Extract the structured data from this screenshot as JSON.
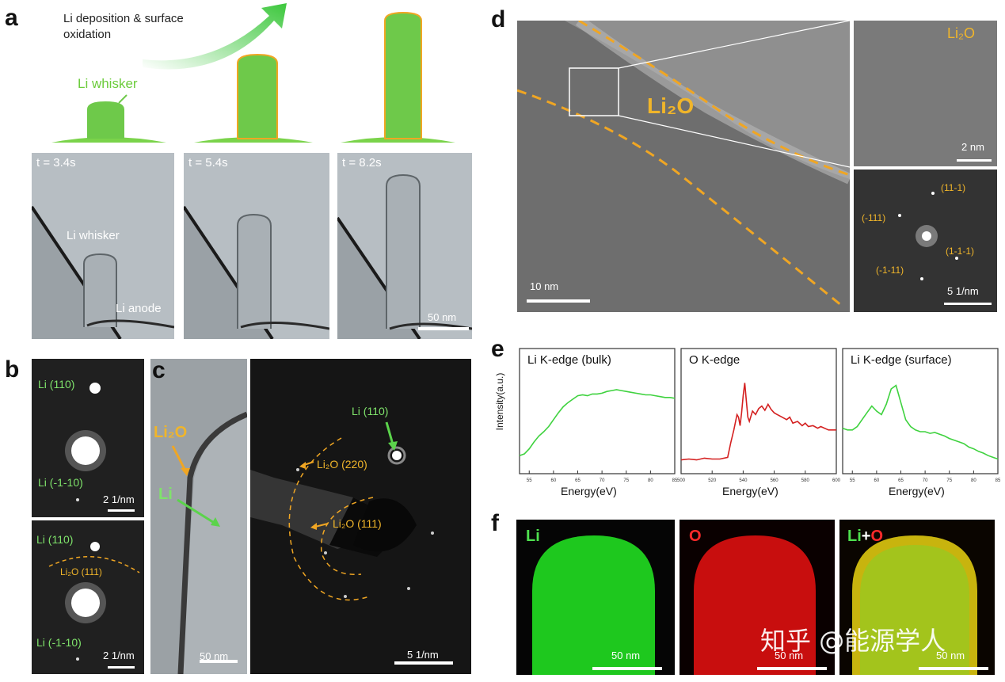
{
  "panels": {
    "a": {
      "label": "a",
      "arrow_caption_line1": "Li deposition & surface",
      "arrow_caption_line2": "oxidation",
      "whisker_label": "Li whisker",
      "frames": [
        {
          "time": "t = 3.4s"
        },
        {
          "time": "t = 5.4s"
        },
        {
          "time": "t = 8.2s"
        }
      ],
      "whisker_text": "Li whisker",
      "anode_text": "Li anode",
      "scalebar": "50 nm"
    },
    "b": {
      "label": "b",
      "top": {
        "spot1": "Li (110)",
        "spot2": "Li (-1-10)",
        "scalebar": "2 1/nm"
      },
      "bottom": {
        "spot1": "Li (110)",
        "ring": "Li₂O (111)",
        "spot2": "Li (-1-10)",
        "scalebar": "2 1/nm"
      }
    },
    "c": {
      "label": "c",
      "li2o": "Li₂O",
      "li": "Li",
      "scalebar_left": "50 nm",
      "li110": "Li (110)",
      "li2o220": "Li₂O (220)",
      "li2o111": "Li₂O (111)",
      "scalebar_right": "5 1/nm"
    },
    "d": {
      "label": "d",
      "main_label": "Li₂O",
      "scalebar_main": "10 nm",
      "inset_label": "Li₂O",
      "scalebar_inset": "2 nm",
      "fft_spots": [
        "(11-1)",
        "(-111)",
        "(1-1-1)",
        "(-1-11)"
      ],
      "scalebar_fft": "5 1/nm"
    },
    "e": {
      "label": "e",
      "ylabel": "Intensity(a.u.)",
      "charts": [
        {
          "title": "Li K-edge (bulk)",
          "xlabel": "Energy(eV)"
        },
        {
          "title": "O K-edge",
          "xlabel": "Energy(eV)"
        },
        {
          "title": "Li K-edge (surface)",
          "xlabel": "Energy(eV)"
        }
      ]
    },
    "f": {
      "label": "f",
      "maps": [
        {
          "title_a": "Li",
          "title_b": "",
          "title_c": "",
          "scalebar": ""
        },
        {
          "title_a": "",
          "title_b": "",
          "title_c": "O",
          "scalebar": "50 nm"
        },
        {
          "title_a": "Li",
          "title_b": "+",
          "title_c": "O",
          "scalebar": "50 nm"
        }
      ],
      "scalebar_first": "50 nm"
    }
  },
  "watermark": "知乎 @能源学人",
  "chart_data": [
    {
      "type": "line",
      "title": "Li K-edge (bulk)",
      "xlabel": "Energy(eV)",
      "ylabel": "Intensity(a.u.)",
      "xlim": [
        53,
        85
      ],
      "x_ticks": [
        55,
        60,
        65,
        70,
        75,
        80,
        85
      ],
      "color": "#3fd23f",
      "series": [
        {
          "x": [
            53,
            54,
            55,
            56,
            57,
            58,
            59,
            60,
            61,
            62,
            63,
            64,
            65,
            66,
            67,
            68,
            69,
            70,
            71,
            72,
            73,
            74,
            75,
            76,
            77,
            78,
            79,
            80,
            81,
            82,
            83,
            84,
            85
          ],
          "y": [
            0.1,
            0.12,
            0.18,
            0.26,
            0.33,
            0.38,
            0.44,
            0.52,
            0.6,
            0.67,
            0.72,
            0.76,
            0.8,
            0.81,
            0.8,
            0.82,
            0.82,
            0.83,
            0.85,
            0.86,
            0.87,
            0.86,
            0.85,
            0.84,
            0.83,
            0.82,
            0.81,
            0.81,
            0.8,
            0.79,
            0.78,
            0.78,
            0.77
          ]
        }
      ]
    },
    {
      "type": "line",
      "title": "O K-edge",
      "xlabel": "Energy(eV)",
      "ylabel": "",
      "xlim": [
        500,
        600
      ],
      "x_ticks": [
        500,
        520,
        540,
        560,
        580,
        600
      ],
      "color": "#d42020",
      "series": [
        {
          "x": [
            500,
            505,
            510,
            515,
            520,
            525,
            530,
            532,
            534,
            536,
            537,
            538,
            539,
            540,
            541,
            542,
            543,
            544,
            546,
            548,
            550,
            552,
            554,
            556,
            558,
            560,
            562,
            565,
            568,
            570,
            572,
            575,
            578,
            580,
            582,
            585,
            588,
            590,
            595,
            600
          ],
          "y": [
            0.05,
            0.06,
            0.05,
            0.07,
            0.06,
            0.06,
            0.08,
            0.25,
            0.4,
            0.58,
            0.55,
            0.45,
            0.6,
            0.8,
            0.95,
            0.75,
            0.55,
            0.5,
            0.62,
            0.58,
            0.65,
            0.68,
            0.63,
            0.7,
            0.64,
            0.6,
            0.58,
            0.55,
            0.52,
            0.55,
            0.48,
            0.5,
            0.45,
            0.48,
            0.44,
            0.45,
            0.42,
            0.44,
            0.4,
            0.4
          ]
        }
      ]
    },
    {
      "type": "line",
      "title": "Li K-edge (surface)",
      "xlabel": "Energy(eV)",
      "ylabel": "",
      "xlim": [
        53,
        85
      ],
      "x_ticks": [
        55,
        60,
        65,
        70,
        75,
        80,
        85
      ],
      "color": "#3fd23f",
      "series": [
        {
          "x": [
            53,
            54,
            55,
            56,
            57,
            58,
            59,
            60,
            61,
            62,
            63,
            64,
            65,
            66,
            67,
            68,
            69,
            70,
            71,
            72,
            73,
            74,
            75,
            76,
            77,
            78,
            79,
            80,
            81,
            82,
            83,
            84,
            85
          ],
          "y": [
            0.42,
            0.4,
            0.4,
            0.44,
            0.52,
            0.6,
            0.68,
            0.62,
            0.58,
            0.7,
            0.88,
            0.92,
            0.72,
            0.52,
            0.44,
            0.4,
            0.38,
            0.38,
            0.36,
            0.37,
            0.35,
            0.33,
            0.3,
            0.28,
            0.26,
            0.24,
            0.2,
            0.18,
            0.15,
            0.13,
            0.1,
            0.08,
            0.06
          ]
        }
      ]
    }
  ]
}
